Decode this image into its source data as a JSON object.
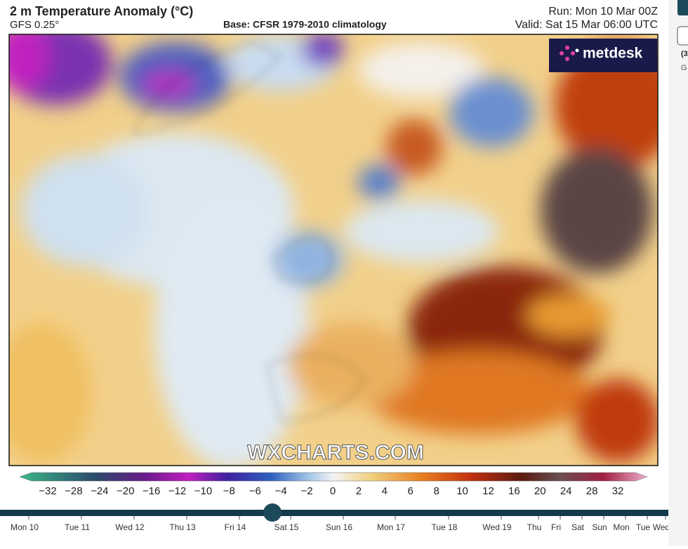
{
  "header": {
    "title": "2 m Temperature Anomaly (°C)",
    "model": "GFS 0.25°",
    "base": "Base: CFSR 1979-2010 climatology",
    "run": "Run: Mon 10 Mar 00Z",
    "valid": "Valid: Sat 15 Mar 06:00 UTC"
  },
  "logo": "metdesk",
  "watermark": "WXCHARTS.COM",
  "colorbar": {
    "labels": [
      "−32",
      "−28",
      "−24",
      "−20",
      "−16",
      "−12",
      "−10",
      "−8",
      "−6",
      "−4",
      "−2",
      "0",
      "2",
      "4",
      "6",
      "8",
      "10",
      "12",
      "16",
      "20",
      "24",
      "28",
      "32"
    ]
  },
  "timeline": {
    "days": [
      "Mon 10",
      "Tue 11",
      "Wed 12",
      "Thu 13",
      "Fri 14",
      "Sat 15",
      "Sun 16",
      "Mon 17",
      "Tue 18",
      "Wed 19",
      "Thu",
      "Fri",
      "Sat",
      "Sun",
      "Mon",
      "Tue",
      "Wed"
    ]
  },
  "side": {
    "labels": [
      "(3",
      "G"
    ]
  }
}
